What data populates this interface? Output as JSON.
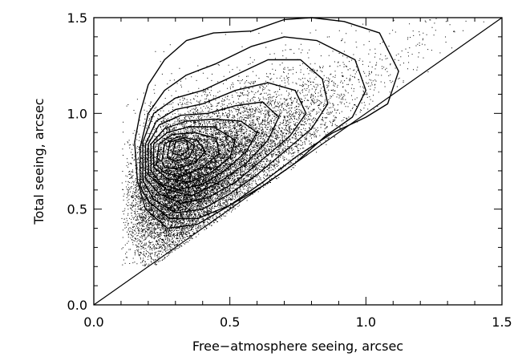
{
  "chart_data": {
    "type": "scatter",
    "title": "",
    "xlabel": "Free−atmosphere seeing, arcsec",
    "ylabel": "Total seeing, arcsec",
    "xlim": [
      0.0,
      1.5
    ],
    "ylim": [
      0.0,
      1.5
    ],
    "grid": false,
    "legend": "none",
    "x_ticks": [
      {
        "value": 0.0,
        "label": "0.0"
      },
      {
        "value": 0.5,
        "label": "0.5"
      },
      {
        "value": 1.0,
        "label": "1.0"
      },
      {
        "value": 1.5,
        "label": "1.5"
      }
    ],
    "y_ticks": [
      {
        "value": 0.0,
        "label": "0.0"
      },
      {
        "value": 0.5,
        "label": "0.5"
      },
      {
        "value": 1.0,
        "label": "1.0"
      },
      {
        "value": 1.5,
        "label": "1.5"
      }
    ],
    "minor_tick_step": 0.1,
    "reference_line": {
      "x": [
        0.0,
        1.5
      ],
      "y": [
        0.0,
        1.5
      ]
    },
    "colors": {
      "points": "#000000",
      "contours": "#000000",
      "axes": "#000000"
    },
    "density_peak": {
      "x": 0.32,
      "y": 0.83
    },
    "contours": [
      {
        "level": 1,
        "x": [
          0.16,
          0.15,
          0.17,
          0.2,
          0.26,
          0.34,
          0.44,
          0.58,
          0.7,
          0.8,
          0.92,
          1.05,
          1.12,
          1.08,
          1.0,
          0.88,
          0.75,
          0.62,
          0.5,
          0.38,
          0.27,
          0.19
        ],
        "y": [
          0.65,
          0.85,
          1.0,
          1.15,
          1.28,
          1.38,
          1.42,
          1.43,
          1.49,
          1.5,
          1.48,
          1.42,
          1.22,
          1.05,
          0.98,
          0.9,
          0.78,
          0.64,
          0.52,
          0.42,
          0.4,
          0.5
        ]
      },
      {
        "level": 2,
        "x": [
          0.17,
          0.17,
          0.2,
          0.26,
          0.34,
          0.45,
          0.58,
          0.7,
          0.82,
          0.96,
          1.0,
          0.95,
          0.85,
          0.74,
          0.62,
          0.5,
          0.38,
          0.28,
          0.2
        ],
        "y": [
          0.62,
          0.82,
          1.0,
          1.12,
          1.2,
          1.26,
          1.35,
          1.4,
          1.38,
          1.28,
          1.12,
          0.98,
          0.88,
          0.74,
          0.62,
          0.52,
          0.45,
          0.45,
          0.54
        ]
      },
      {
        "level": 3,
        "x": [
          0.18,
          0.18,
          0.22,
          0.3,
          0.4,
          0.52,
          0.64,
          0.76,
          0.84,
          0.86,
          0.8,
          0.7,
          0.6,
          0.5,
          0.4,
          0.3,
          0.22
        ],
        "y": [
          0.65,
          0.85,
          1.0,
          1.08,
          1.12,
          1.2,
          1.28,
          1.28,
          1.18,
          1.05,
          0.92,
          0.8,
          0.68,
          0.58,
          0.5,
          0.48,
          0.55
        ]
      },
      {
        "level": 4,
        "x": [
          0.19,
          0.19,
          0.23,
          0.3,
          0.4,
          0.52,
          0.64,
          0.74,
          0.78,
          0.72,
          0.62,
          0.52,
          0.42,
          0.32,
          0.24
        ],
        "y": [
          0.66,
          0.84,
          0.96,
          1.02,
          1.05,
          1.12,
          1.16,
          1.12,
          1.0,
          0.88,
          0.76,
          0.64,
          0.56,
          0.53,
          0.58
        ]
      },
      {
        "level": 5,
        "x": [
          0.2,
          0.2,
          0.24,
          0.32,
          0.42,
          0.52,
          0.62,
          0.68,
          0.64,
          0.56,
          0.46,
          0.36,
          0.27
        ],
        "y": [
          0.68,
          0.84,
          0.94,
          0.99,
          1.0,
          1.04,
          1.06,
          0.98,
          0.86,
          0.74,
          0.64,
          0.57,
          0.6
        ]
      },
      {
        "level": 6,
        "x": [
          0.21,
          0.21,
          0.26,
          0.34,
          0.44,
          0.54,
          0.6,
          0.56,
          0.48,
          0.4,
          0.31,
          0.25
        ],
        "y": [
          0.7,
          0.84,
          0.92,
          0.96,
          0.97,
          0.96,
          0.9,
          0.8,
          0.7,
          0.63,
          0.6,
          0.63
        ]
      },
      {
        "level": 7,
        "x": [
          0.22,
          0.22,
          0.27,
          0.35,
          0.44,
          0.52,
          0.5,
          0.43,
          0.35,
          0.27
        ],
        "y": [
          0.72,
          0.84,
          0.9,
          0.93,
          0.93,
          0.86,
          0.77,
          0.69,
          0.64,
          0.66
        ]
      },
      {
        "level": 8,
        "x": [
          0.23,
          0.24,
          0.29,
          0.37,
          0.45,
          0.46,
          0.4,
          0.32,
          0.26
        ],
        "y": [
          0.73,
          0.84,
          0.89,
          0.9,
          0.87,
          0.79,
          0.72,
          0.67,
          0.69
        ]
      },
      {
        "level": 9,
        "x": [
          0.25,
          0.26,
          0.31,
          0.38,
          0.41,
          0.37,
          0.3,
          0.26
        ],
        "y": [
          0.75,
          0.84,
          0.88,
          0.86,
          0.8,
          0.74,
          0.71,
          0.72
        ]
      },
      {
        "level": 10,
        "x": [
          0.27,
          0.28,
          0.33,
          0.37,
          0.35,
          0.3
        ],
        "y": [
          0.77,
          0.85,
          0.87,
          0.83,
          0.77,
          0.75
        ]
      },
      {
        "level": 11,
        "x": [
          0.29,
          0.3,
          0.34,
          0.35,
          0.32
        ],
        "y": [
          0.79,
          0.85,
          0.86,
          0.81,
          0.78
        ]
      }
    ]
  }
}
